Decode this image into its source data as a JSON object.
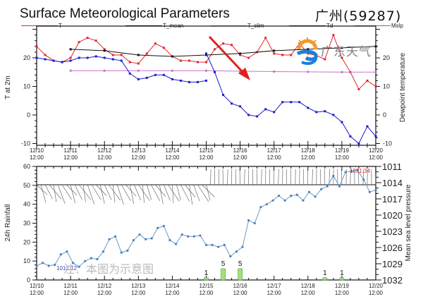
{
  "title": "Surface Meteorological Parameters",
  "station": "广州(59287)",
  "logo_text": "广东天气",
  "watermark": "注：本图为示意图",
  "legend": [
    {
      "label": "T",
      "color": "#e0282d"
    },
    {
      "label": "T_mean",
      "color": "#111111"
    },
    {
      "label": "T_clim",
      "color": "#d070d0"
    },
    {
      "label": "Td",
      "color": "#1a1ad0"
    },
    {
      "label": "Mslp",
      "color": "#558855"
    }
  ],
  "chart_data": [
    {
      "type": "line",
      "title": "Surface Meteorological Parameters",
      "xlabel": "",
      "ylabel": "T at 2m",
      "y2label": "Dewpoint temperature",
      "ylim": [
        -11,
        30
      ],
      "yticks": [
        -10,
        0,
        10,
        20
      ],
      "xtick_labels": [
        "12/10 12:00",
        "12/11 12:00",
        "12/12 12:00",
        "12/13 12:00",
        "12/14 12:00",
        "12/15 12:00",
        "12/16 12:00",
        "12/17 12:00",
        "12/18 12:00",
        "12/19 12:00",
        "12/20 12:00"
      ],
      "series": [
        {
          "name": "T",
          "color": "#e0282d",
          "x": [
            0,
            0.25,
            0.5,
            0.75,
            1,
            1.25,
            1.5,
            1.75,
            2,
            2.25,
            2.5,
            2.75,
            3,
            3.25,
            3.5,
            3.75,
            4,
            4.25,
            4.5,
            4.75,
            5,
            5.25,
            5.5,
            5.75,
            6,
            6.25,
            6.5,
            6.75,
            7,
            7.25,
            7.5,
            7.75,
            8,
            8.25,
            8.5,
            8.75,
            9,
            9.25,
            9.5,
            9.75,
            10
          ],
          "values": [
            24,
            21,
            19,
            18.5,
            20,
            25.5,
            27,
            26,
            23,
            21,
            21,
            18.5,
            18,
            21.5,
            25,
            23.5,
            20.5,
            19,
            19,
            18.5,
            18.5,
            23,
            25,
            24.5,
            21,
            20,
            22,
            27,
            21.5,
            21,
            21,
            25,
            21.5,
            20.8,
            19.5,
            28,
            20,
            15,
            9,
            12,
            10
          ]
        },
        {
          "name": "T_mean",
          "color": "#111111",
          "x": [
            1,
            2,
            3,
            4,
            5,
            6,
            7,
            8,
            9,
            10
          ],
          "values": [
            23,
            22.5,
            21,
            20.5,
            21,
            21.5,
            22.5,
            23,
            23.5,
            24
          ]
        },
        {
          "name": "T_clim",
          "color": "#d070d0",
          "x": [
            1,
            2,
            3,
            4,
            5,
            6,
            7,
            8,
            9,
            10
          ],
          "values": [
            15.5,
            15.5,
            15.5,
            15.5,
            15.5,
            15.3,
            15.2,
            15.1,
            15,
            15
          ]
        },
        {
          "name": "Td",
          "color": "#1a1ad0",
          "x": [
            0,
            0.25,
            0.5,
            0.75,
            1,
            1.25,
            1.5,
            1.75,
            2,
            2.25,
            2.5,
            2.75,
            3,
            3.25,
            3.5,
            3.75,
            4,
            4.25,
            4.5,
            4.75,
            5
          ],
          "values": [
            20,
            19.5,
            19,
            18.5,
            19,
            20,
            20,
            20.5,
            20,
            19.5,
            19,
            14.5,
            12.5,
            13,
            14,
            14,
            12.5,
            12,
            11.5,
            11.5,
            12
          ]
        }
      ]
    },
    {
      "type": "line",
      "title": "Surface Meteorological Parameters (lower panel)",
      "ylabel": "24h Rainfall",
      "y2label": "Mean sea level pressure",
      "ylim": [
        0,
        60
      ],
      "y2lim": [
        1011,
        1032
      ],
      "yticks": [
        0,
        10,
        20,
        30,
        40,
        50,
        60
      ],
      "y2ticks": [
        1011,
        1014,
        1017,
        1020,
        1023,
        1026,
        1029,
        1032
      ],
      "annotations": [
        "1012.12",
        "1031.34"
      ],
      "rain_bars": [
        {
          "x": 5,
          "value": 1
        },
        {
          "x": 5.5,
          "value": 5
        },
        {
          "x": 6,
          "value": 5
        },
        {
          "x": 8.5,
          "value": 1
        },
        {
          "x": 9,
          "value": 1
        }
      ],
      "mslp_series_rainfall_scale": [
        7.5,
        9,
        7.5,
        8,
        13.5,
        15,
        9,
        7,
        10,
        11.5,
        11,
        15,
        21.5,
        23,
        14.5,
        15.5,
        21,
        24,
        21.5,
        22,
        27.5,
        28.5,
        21,
        19,
        24,
        23,
        23,
        23.5,
        18.5,
        18.5,
        17.5,
        18.5,
        12.5,
        15,
        17.5,
        31.5,
        30,
        38.5,
        40,
        42,
        44.5,
        42,
        44.5,
        45,
        42,
        46.5,
        44,
        48,
        49.5,
        55,
        49.5,
        57,
        57.5,
        58,
        53,
        46.5,
        47.5
      ]
    }
  ],
  "axes": {
    "top": {
      "ylabel": "T at 2m",
      "y2label": "Dewpoint temperature",
      "yticks": [
        "20",
        "10",
        "0",
        "-10"
      ],
      "y2ticks": [
        "20",
        "10",
        "0",
        "-10"
      ]
    },
    "bottom": {
      "ylabel": "24h Rainfall",
      "y2label": "Mean sea level pressure",
      "yticks": [
        "60",
        "50",
        "40",
        "30",
        "20",
        "10",
        "0"
      ],
      "y2ticks": [
        "1032",
        "1029",
        "1026",
        "1023",
        "1020",
        "1017",
        "1014",
        "1011"
      ]
    },
    "xticks": [
      [
        "12/10",
        "12:00"
      ],
      [
        "12/11",
        "12:00"
      ],
      [
        "12/12",
        "12:00"
      ],
      [
        "12/13",
        "12:00"
      ],
      [
        "12/14",
        "12:00"
      ],
      [
        "12/15",
        "12:00"
      ],
      [
        "12/16",
        "12:00"
      ],
      [
        "12/17",
        "12:00"
      ],
      [
        "12/18",
        "12:00"
      ],
      [
        "12/19",
        "12:00"
      ],
      [
        "12/20",
        "12:00"
      ]
    ]
  }
}
